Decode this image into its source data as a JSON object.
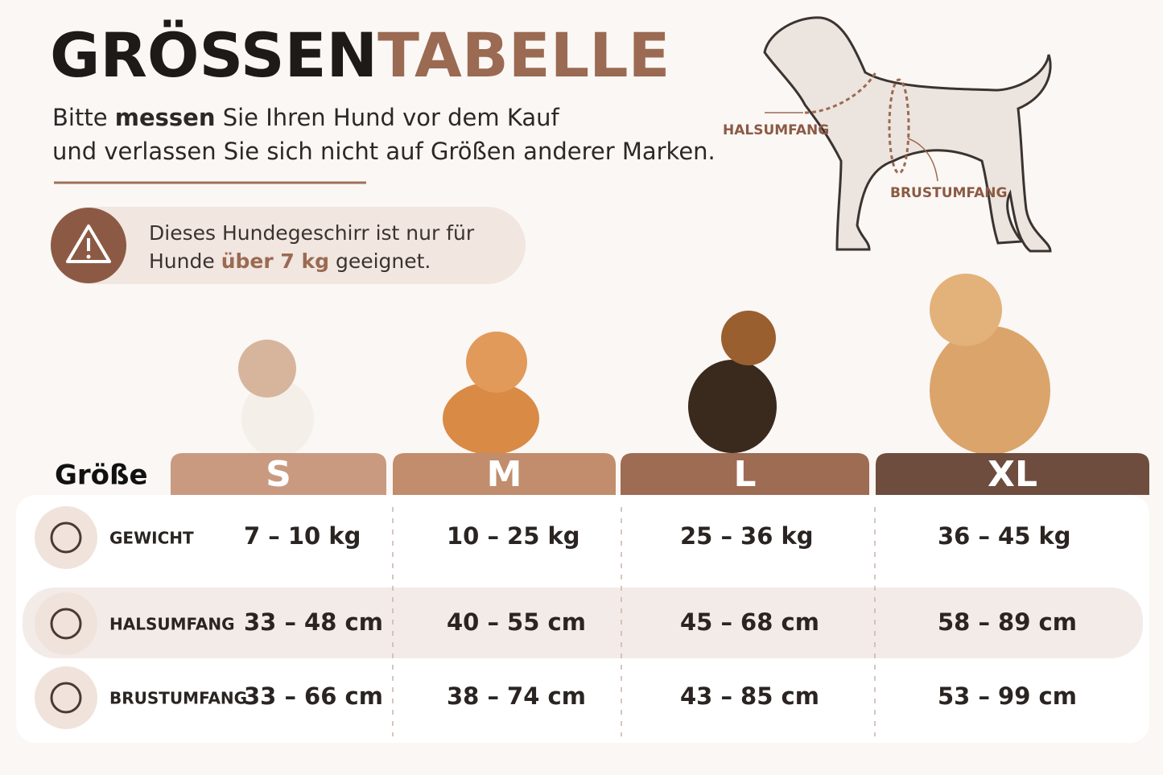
{
  "header": {
    "title_part1": "GRÖSSEN",
    "title_part2": "TABELLE",
    "intro": {
      "line1": [
        "Bitte ",
        "messen",
        " Sie Ihren Hund vor dem Kauf"
      ],
      "line2": "und verlassen Sie sich nicht auf Größen anderer Marken."
    },
    "notice": {
      "line1": "Dieses Hundegeschirr ist nur für",
      "line2": [
        "Hunde ",
        "über 7 kg",
        " geeignet."
      ]
    }
  },
  "diagram": {
    "neck_label": "HALSUMFANG",
    "chest_label": "BRUSTUMFANG"
  },
  "table": {
    "size_label": "Größe",
    "sizes": [
      "S",
      "M",
      "L",
      "XL"
    ],
    "rows": [
      {
        "label": "GEWICHT",
        "values": [
          "7 – 10 kg",
          "10 – 25 kg",
          "25 – 36 kg",
          "36 – 45 kg"
        ]
      },
      {
        "label": "HALSUMFANG",
        "values": [
          "33 – 48 cm",
          "40 – 55 cm",
          "45 – 68 cm",
          "58 – 89 cm"
        ]
      },
      {
        "label": "BRUSTUMFANG",
        "values": [
          "33 – 66 cm",
          "38 – 74 cm",
          "43 – 85 cm",
          "53 – 99 cm"
        ]
      }
    ]
  }
}
